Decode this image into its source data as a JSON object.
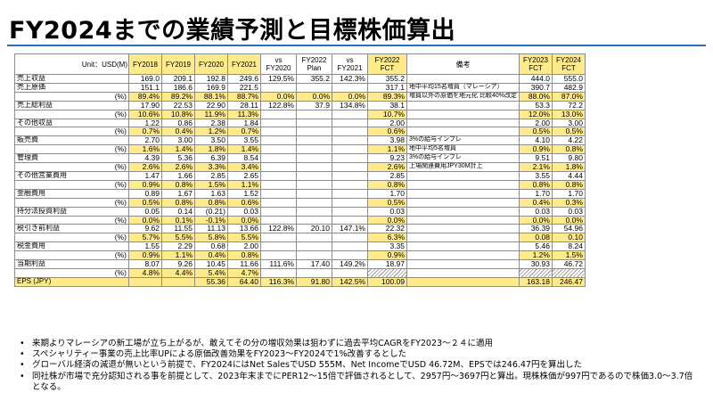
{
  "title": "FY2024までの業績予測と目標株価算出",
  "table": {
    "unit_label": "Unit：USD(M)",
    "headers": [
      "FY2018",
      "FY2019",
      "FY2020",
      "FY2021",
      "vs FY2020",
      "FY2022 Plan",
      "vs FY2021",
      "FY2022 FCT",
      "備考",
      "FY2023 FCT",
      "FY2024 FCT"
    ],
    "rows": [
      {
        "label": "売上収益",
        "cells": [
          "169.0",
          "209.1",
          "192.8",
          "249.6",
          "129.5%",
          "355.2",
          "142.3%",
          "355.2",
          "",
          "444.0",
          "555.0"
        ]
      },
      {
        "label": "売上原価",
        "cells": [
          "151.1",
          "186.6",
          "169.9",
          "221.5",
          "",
          "",
          "",
          "317.1",
          "地中平均15名増員（マレーシア）",
          "390.7",
          "482.9"
        ]
      },
      {
        "label": "(%)",
        "pct": true,
        "cells": [
          "89.4%",
          "89.2%",
          "88.1%",
          "88.7%",
          "0.0%",
          "0.0%",
          "0.0%",
          "89.3%",
          "増員以外の原価を地元化 比較40%改定",
          "88.0%",
          "87.0%"
        ]
      },
      {
        "label": "売上総利益",
        "cells": [
          "17.90",
          "22.53",
          "22.90",
          "28.11",
          "122.8%",
          "37.9",
          "134.8%",
          "38.1",
          "",
          "53.3",
          "72.2"
        ]
      },
      {
        "label": "(%)",
        "pct": true,
        "cells": [
          "10.6%",
          "10.8%",
          "11.9%",
          "11.3%",
          "",
          "",
          "",
          "10.7%",
          "",
          "12.0%",
          "13.0%"
        ]
      },
      {
        "label": "その他収益",
        "cells": [
          "1.22",
          "0.86",
          "2.38",
          "1.84",
          "",
          "",
          "",
          "2.00",
          "",
          "2.00",
          "3.00"
        ]
      },
      {
        "label": "(%)",
        "pct": true,
        "cells": [
          "0.7%",
          "0.4%",
          "1.2%",
          "0.7%",
          "",
          "",
          "",
          "0.6%",
          "",
          "0.5%",
          "0.5%"
        ]
      },
      {
        "label": "販売費",
        "cells": [
          "2.70",
          "3.00",
          "3.50",
          "3.55",
          "",
          "",
          "",
          "3.98",
          "3%の給与インフレ",
          "4.10",
          "4.22"
        ]
      },
      {
        "label": "(%)",
        "pct": true,
        "cells": [
          "1.6%",
          "1.4%",
          "1.8%",
          "1.4%",
          "",
          "",
          "",
          "1.1%",
          "地中平均5名増員",
          "0.9%",
          "0.8%"
        ]
      },
      {
        "label": "管理費",
        "cells": [
          "4.39",
          "5.36",
          "6.39",
          "8.54",
          "",
          "",
          "",
          "9.23",
          "3%の給与インフレ",
          "9.51",
          "9.80"
        ]
      },
      {
        "label": "(%)",
        "pct": true,
        "cells": [
          "2.6%",
          "2.6%",
          "3.3%",
          "3.4%",
          "",
          "",
          "",
          "2.6%",
          "上場関連費用JPY30M計上",
          "2.1%",
          "1.8%"
        ]
      },
      {
        "label": "その他営業費用",
        "cells": [
          "1.47",
          "1.66",
          "2.85",
          "2.65",
          "",
          "",
          "",
          "2.85",
          "",
          "3.55",
          "4.44"
        ]
      },
      {
        "label": "(%)",
        "pct": true,
        "cells": [
          "0.9%",
          "0.8%",
          "1.5%",
          "1.1%",
          "",
          "",
          "",
          "0.8%",
          "",
          "0.8%",
          "0.8%"
        ]
      },
      {
        "label": "金融費用",
        "cells": [
          "0.89",
          "1.67",
          "1.63",
          "1.52",
          "",
          "",
          "",
          "1.70",
          "",
          "1.70",
          "1.70"
        ]
      },
      {
        "label": "(%)",
        "pct": true,
        "cells": [
          "0.5%",
          "0.8%",
          "0.8%",
          "0.6%",
          "",
          "",
          "",
          "0.5%",
          "",
          "0.4%",
          "0.3%"
        ]
      },
      {
        "label": "持分法投資利益",
        "cells": [
          "0.05",
          "0.14",
          "(0.21)",
          "0.03",
          "",
          "",
          "",
          "0.03",
          "",
          "0.03",
          "0.03"
        ]
      },
      {
        "label": "(%)",
        "pct": true,
        "cells": [
          "0.0%",
          "0.1%",
          "-0.1%",
          "0.0%",
          "",
          "",
          "",
          "0.0%",
          "",
          "0.0%",
          "0.0%"
        ]
      },
      {
        "label": "税引き前利益",
        "cells": [
          "9.62",
          "11.55",
          "11.13",
          "13.66",
          "122.8%",
          "20.10",
          "147.1%",
          "22.32",
          "",
          "36.39",
          "54.96"
        ]
      },
      {
        "label": "(%)",
        "pct": true,
        "cells": [
          "5.7%",
          "5.5%",
          "5.8%",
          "5.5%",
          "",
          "",
          "",
          "6.3%",
          "",
          "0.08",
          "0.10"
        ]
      },
      {
        "label": "税金費用",
        "cells": [
          "1.55",
          "2.29",
          "0.68",
          "2.00",
          "",
          "",
          "",
          "3.35",
          "",
          "5.46",
          "8.24"
        ]
      },
      {
        "label": "(%)",
        "pct": true,
        "cells": [
          "0.9%",
          "1.1%",
          "0.4%",
          "0.8%",
          "",
          "",
          "",
          "0.9%",
          "",
          "1.2%",
          "1.5%"
        ]
      },
      {
        "label": "当期利益",
        "cells": [
          "8.07",
          "9.26",
          "10.45",
          "11.66",
          "111.6%",
          "17.40",
          "149.2%",
          "18.97",
          "",
          "30.93",
          "46.72"
        ]
      },
      {
        "label": "(%)",
        "pct": true,
        "cells": [
          "4.8%",
          "4.4%",
          "5.4%",
          "4.7%",
          "",
          "",
          "",
          "",
          "",
          "",
          ""
        ]
      },
      {
        "label": "EPS (JPY)",
        "eps": true,
        "cells": [
          "",
          "",
          "55.36",
          "64.40",
          "116.3%",
          "91.80",
          "142.5%",
          "100.09",
          "",
          "163.18",
          "246.47"
        ]
      }
    ]
  },
  "notes": [
    "来期よりマレーシアの新工場が立ち上がるが、敢えてその分の増収効果は狙わずに過去平均CAGRをFY2023～２４に適用",
    "スペシャリティー事業の売上比率UPによる原価改善効果をFY2023～FY2024で1%改善するとした",
    "グローバル経済の減退が無いという前提で、FY2024にはNet SalesでUSD 555M、Net IncomeでUSD 46.72M、EPSでは246.47円を算出した",
    "同社株が市場で充分認知される事を前提として、2023年末までにPER12～15倍で評価されるとして、2957円～3697円と算出。現株株価が997円であるので株価3.0～3.7倍となる。"
  ]
}
